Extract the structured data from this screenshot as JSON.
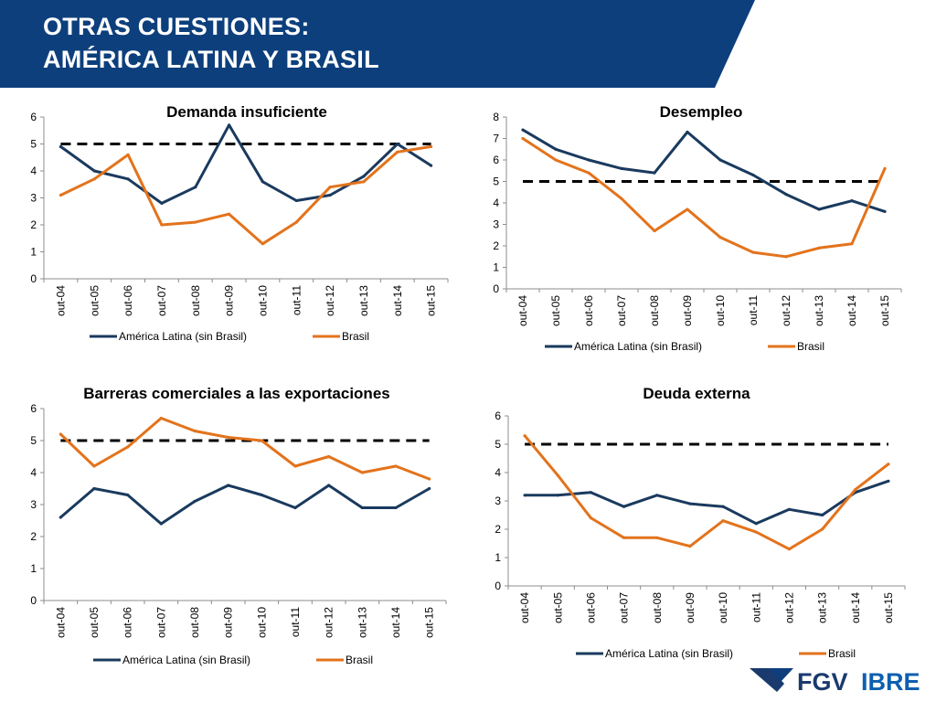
{
  "header": {
    "title_line1": "OTRAS CUESTIONES:",
    "title_line2": "AMÉRICA LATINA Y BRASIL",
    "bg_color": "#0d3f7c"
  },
  "logo": {
    "fgv": "FGV",
    "ibre": "IBRE"
  },
  "colors": {
    "america_latina": "#1a3a5e",
    "brasil": "#e3731c",
    "reference": "#000000"
  },
  "chart_data": [
    {
      "type": "line",
      "title": "Demanda insuficiente",
      "categories": [
        "out-04",
        "out-05",
        "out-06",
        "out-07",
        "out-08",
        "out-09",
        "out-10",
        "out-11",
        "out-12",
        "out-13",
        "out-14",
        "out-15"
      ],
      "series": [
        {
          "name": "América Latina (sin Brasil)",
          "values": [
            4.9,
            4.0,
            3.7,
            2.8,
            3.4,
            5.7,
            3.6,
            2.9,
            3.1,
            3.8,
            5.0,
            4.2
          ]
        },
        {
          "name": "Brasil",
          "values": [
            3.1,
            3.7,
            4.6,
            2.0,
            2.1,
            2.4,
            1.3,
            2.1,
            3.4,
            3.6,
            4.7,
            4.9
          ]
        }
      ],
      "reference_line": 5,
      "ylim": [
        0,
        6
      ],
      "yticks": [
        0,
        1,
        2,
        3,
        4,
        5,
        6
      ],
      "legend": "bottom",
      "grid": false
    },
    {
      "type": "line",
      "title": "Desempleo",
      "categories": [
        "out-04",
        "out-05",
        "out-06",
        "out-07",
        "out-08",
        "out-09",
        "out-10",
        "out-11",
        "out-12",
        "out-13",
        "out-14",
        "out-15"
      ],
      "series": [
        {
          "name": "América Latina (sin Brasil)",
          "values": [
            7.4,
            6.5,
            6.0,
            5.6,
            5.4,
            7.3,
            6.0,
            5.3,
            4.4,
            3.7,
            4.1,
            3.6
          ]
        },
        {
          "name": "Brasil",
          "values": [
            7.0,
            6.0,
            5.4,
            4.2,
            2.7,
            3.7,
            2.4,
            1.7,
            1.5,
            1.9,
            2.1,
            5.6
          ]
        }
      ],
      "reference_line": 5,
      "ylim": [
        0,
        8
      ],
      "yticks": [
        0,
        1,
        2,
        3,
        4,
        5,
        6,
        7,
        8
      ],
      "legend": "bottom",
      "grid": false
    },
    {
      "type": "line",
      "title": "Barreras comerciales a las exportaciones",
      "categories": [
        "out-04",
        "out-05",
        "out-06",
        "out-07",
        "out-08",
        "out-09",
        "out-10",
        "out-11",
        "out-12",
        "out-13",
        "out-14",
        "out-15"
      ],
      "series": [
        {
          "name": "América Latina (sin Brasil)",
          "values": [
            2.6,
            3.5,
            3.3,
            2.4,
            3.1,
            3.6,
            3.3,
            2.9,
            3.6,
            2.9,
            2.9,
            3.5
          ]
        },
        {
          "name": "Brasil",
          "values": [
            5.2,
            4.2,
            4.8,
            5.7,
            5.3,
            5.1,
            5.0,
            4.2,
            4.5,
            4.0,
            4.2,
            3.8
          ]
        }
      ],
      "reference_line": 5,
      "ylim": [
        0,
        6
      ],
      "yticks": [
        0,
        1,
        2,
        3,
        4,
        5,
        6
      ],
      "legend": "bottom",
      "grid": false
    },
    {
      "type": "line",
      "title": "Deuda externa",
      "categories": [
        "out-04",
        "out-05",
        "out-06",
        "out-07",
        "out-08",
        "out-09",
        "out-10",
        "out-11",
        "out-12",
        "out-13",
        "out-14",
        "out-15"
      ],
      "series": [
        {
          "name": "América Latina (sin Brasil)",
          "values": [
            3.2,
            3.2,
            3.3,
            2.8,
            3.2,
            2.9,
            2.8,
            2.2,
            2.7,
            2.5,
            3.3,
            3.7
          ]
        },
        {
          "name": "Brasil",
          "values": [
            5.3,
            3.9,
            2.4,
            1.7,
            1.7,
            1.4,
            2.3,
            1.9,
            1.3,
            2.0,
            3.4,
            4.3
          ]
        }
      ],
      "reference_line": 5,
      "ylim": [
        0,
        6
      ],
      "yticks": [
        0,
        1,
        2,
        3,
        4,
        5,
        6
      ],
      "legend": "bottom",
      "grid": false
    }
  ]
}
